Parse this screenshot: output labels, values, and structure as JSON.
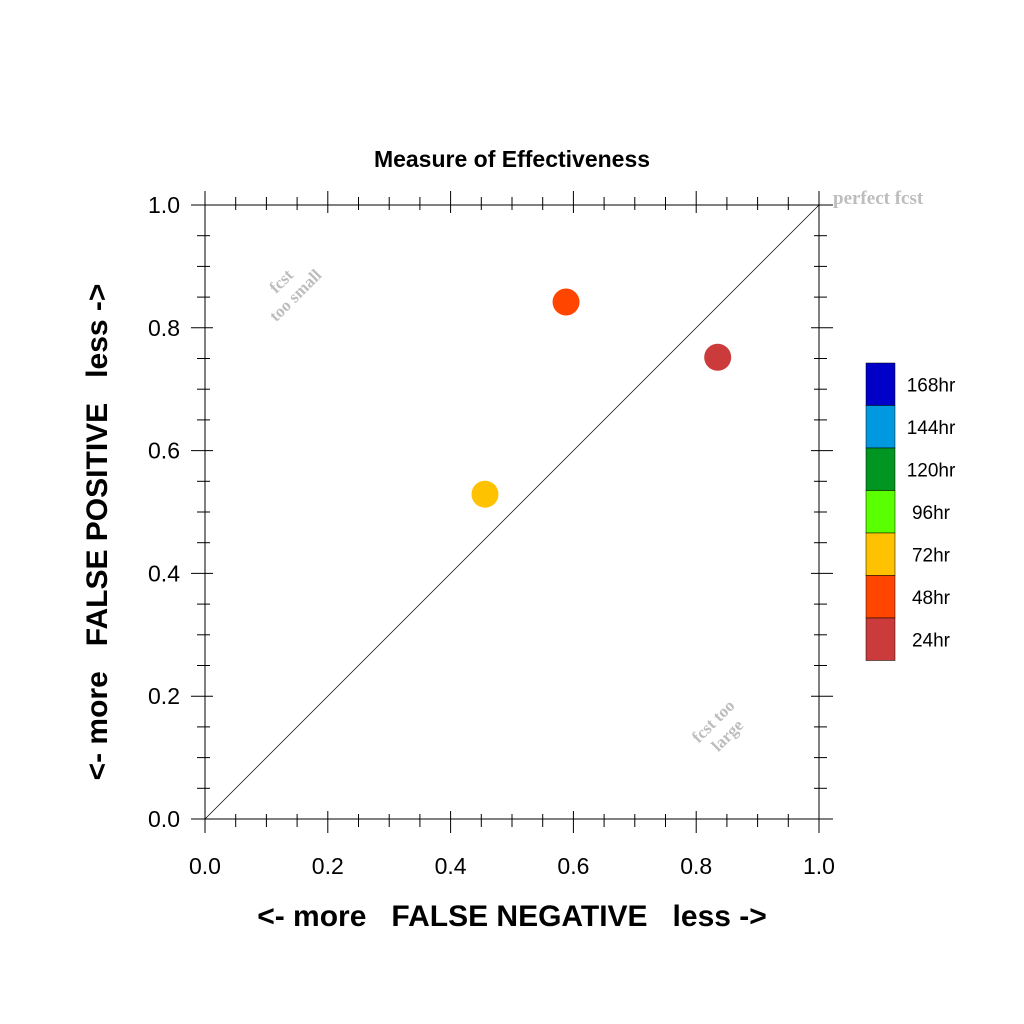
{
  "chart_data": {
    "type": "scatter",
    "title": "Measure of Effectiveness",
    "xlabel": "<- more   FALSE NEGATIVE   less ->",
    "ylabel": "<- more   FALSE POSITIVE   less ->",
    "xlim": [
      0.0,
      1.0
    ],
    "ylim": [
      0.0,
      1.0
    ],
    "xticks": [
      "0.0",
      "0.2",
      "0.4",
      "0.6",
      "0.8",
      "1.0"
    ],
    "yticks": [
      "0.0",
      "0.2",
      "0.4",
      "0.6",
      "0.8",
      "1.0"
    ],
    "grid": false,
    "reference_line": {
      "from": [
        0,
        0
      ],
      "to": [
        1,
        1
      ]
    },
    "annotations": {
      "perfect": "perfect fcst",
      "too_small_1": "fcst",
      "too_small_2": "too small",
      "too_large_1": "fcst too",
      "too_large_2": "large"
    },
    "points": [
      {
        "lead": "24hr",
        "x": 0.835,
        "y": 0.752,
        "color": "#cc3b3b"
      },
      {
        "lead": "48hr",
        "x": 0.588,
        "y": 0.842,
        "color": "#ff4500"
      },
      {
        "lead": "72hr",
        "x": 0.456,
        "y": 0.529,
        "color": "#ffc200"
      }
    ],
    "legend": {
      "placement": "right",
      "entries": [
        {
          "label": "168hr",
          "color": "#0000c8"
        },
        {
          "label": "144hr",
          "color": "#0099e0"
        },
        {
          "label": "120hr",
          "color": "#009621"
        },
        {
          "label": "96hr",
          "color": "#5aff00"
        },
        {
          "label": "72hr",
          "color": "#ffc200"
        },
        {
          "label": "48hr",
          "color": "#ff4500"
        },
        {
          "label": "24hr",
          "color": "#cc3b3b"
        }
      ]
    },
    "annotation_color": "#bdbdbd"
  }
}
